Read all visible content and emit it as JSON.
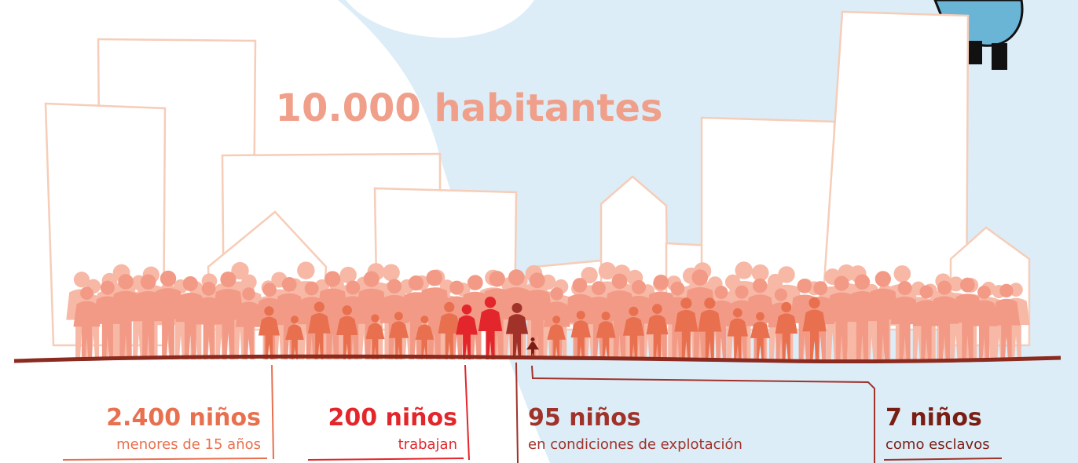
{
  "title": "10.000 habitantes",
  "groups": [
    {
      "count": "2.400 niños",
      "caption": "menores de 15 años"
    },
    {
      "count": "200 niños",
      "caption": "trabajan"
    },
    {
      "count": "95 niños",
      "caption": "en condiciones de explotación"
    },
    {
      "count": "7 niños",
      "caption": "como esclavos"
    }
  ]
}
